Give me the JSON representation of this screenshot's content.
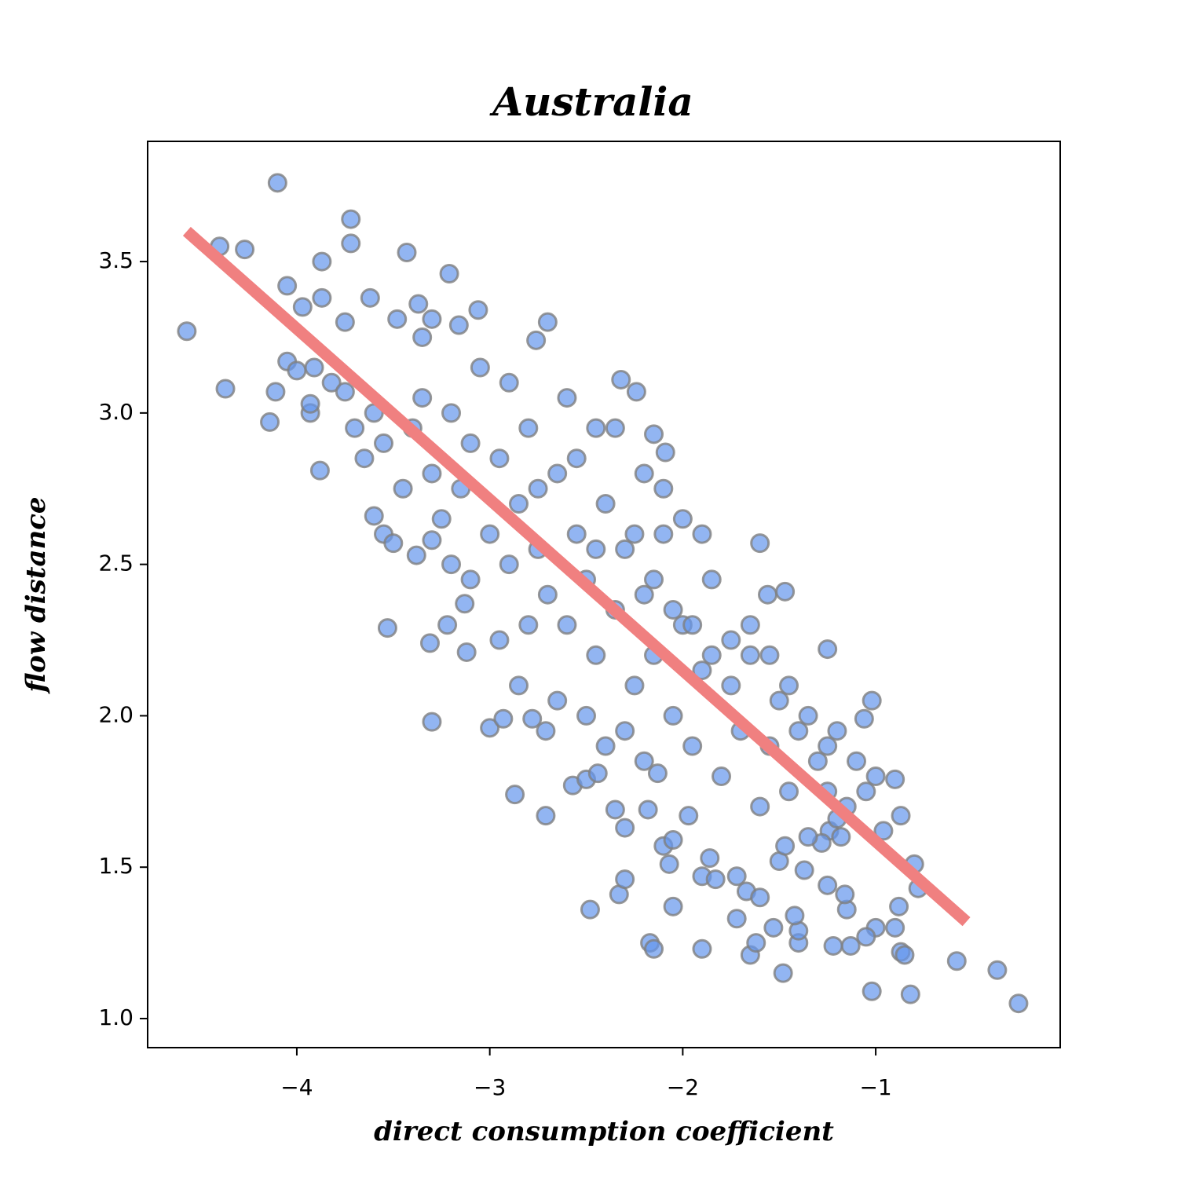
{
  "chart_data": {
    "type": "scatter",
    "title": "Australia",
    "xlabel": "direct consumption coefficient",
    "ylabel": "flow distance",
    "xlim": [
      -4.773,
      -0.044
    ],
    "ylim": [
      0.904,
      3.897
    ],
    "xticks": [
      {
        "value": -4,
        "label": "−4"
      },
      {
        "value": -3,
        "label": "−3"
      },
      {
        "value": -2,
        "label": "−2"
      },
      {
        "value": -1,
        "label": "−1"
      }
    ],
    "yticks": [
      {
        "value": 1,
        "label": "1.0"
      },
      1.5,
      {
        "value": 2,
        "label": "2.0"
      },
      2.5,
      {
        "value": 3,
        "label": "3.0"
      },
      3.5
    ],
    "color": "#6495ed",
    "edgecolor": "#808080",
    "x": [
      -4.1,
      -3.72,
      -4.4,
      -4.27,
      -3.43,
      -3.87,
      -3.72,
      -4.05,
      -3.21,
      -4.57,
      -4.37,
      -4.14,
      -3.88,
      -4.11,
      -3.93,
      -3.93,
      -3.6,
      -3.53,
      -3.31,
      -3.3,
      -3.0,
      -2.87,
      -2.71,
      -2.48,
      -2.33,
      -2.3,
      -2.17,
      -2.15,
      -2.05,
      -1.9,
      -1.65,
      -1.62,
      -1.48,
      -1.02,
      -0.82,
      -0.58,
      -0.37,
      -0.26,
      -0.87,
      -0.85,
      -1.13,
      -1.22,
      -1.4,
      -1.4,
      -1.42,
      -1.53,
      -1.72,
      -0.9,
      -0.88,
      -0.78,
      -0.8,
      -1.0,
      -1.05,
      -1.15,
      -1.16,
      -1.25,
      -1.24,
      -1.6,
      -1.56,
      -1.47,
      -1.25,
      -1.02,
      -1.06,
      -0.9,
      -0.87,
      -0.96,
      -2.32,
      -2.24,
      -2.09,
      -2.15,
      -2.7,
      -2.76,
      -3.06,
      -3.3,
      -3.37,
      -3.48,
      -3.62,
      -3.75,
      -3.87,
      -3.97,
      -4.05,
      -4.0,
      -3.91,
      -3.82,
      -3.75,
      -3.35,
      -3.16,
      -3.55,
      -3.5,
      -3.38,
      -3.3,
      -3.22,
      -3.13,
      -3.12,
      -2.93,
      -2.78,
      -2.71,
      -2.57,
      -2.5,
      -2.44,
      -2.35,
      -2.3,
      -2.18,
      -2.13,
      -2.1,
      -2.07,
      -2.05,
      -1.97,
      -1.9,
      -1.86,
      -1.83,
      -1.72,
      -1.67,
      -1.6,
      -1.5,
      -1.47,
      -1.37,
      -1.28,
      -1.18,
      -1.2,
      -3.4,
      -3.3,
      -3.2,
      -3.15,
      -3.1,
      -3.05,
      -3.0,
      -2.95,
      -2.9,
      -2.85,
      -2.8,
      -2.75,
      -2.7,
      -2.65,
      -2.6,
      -2.55,
      -2.5,
      -2.45,
      -2.4,
      -2.35,
      -2.3,
      -2.25,
      -2.2,
      -2.15,
      -2.1,
      -2.05,
      -2.0,
      -1.95,
      -1.9,
      -1.85,
      -1.8,
      -1.75,
      -1.7,
      -1.65,
      -1.6,
      -1.55,
      -1.5,
      -1.45,
      -1.4,
      -1.35,
      -1.3,
      -1.25,
      -1.2,
      -1.15,
      -1.1,
      -1.05,
      -1.0,
      -3.45,
      -3.25,
      -3.35,
      -3.55,
      -3.6,
      -3.7,
      -3.65,
      -2.9,
      -2.8,
      -2.6,
      -2.45,
      -2.35,
      -2.2,
      -2.1,
      -2.0,
      -1.9,
      -2.95,
      -2.85,
      -2.65,
      -2.5,
      -2.4,
      -2.3,
      -2.2,
      -3.1,
      -3.2,
      -2.75,
      -2.55,
      -2.45,
      -2.25,
      -2.15,
      -2.05,
      -1.95,
      -1.85,
      -1.75,
      -1.65,
      -1.55,
      -1.45,
      -1.35,
      -1.25
    ],
    "y": [
      3.76,
      3.64,
      3.55,
      3.54,
      3.53,
      3.5,
      3.56,
      3.42,
      3.46,
      3.27,
      3.08,
      2.97,
      2.81,
      3.07,
      3.0,
      3.03,
      2.66,
      2.29,
      2.24,
      1.98,
      1.96,
      1.74,
      1.67,
      1.36,
      1.41,
      1.46,
      1.25,
      1.23,
      1.37,
      1.23,
      1.21,
      1.25,
      1.15,
      1.09,
      1.08,
      1.19,
      1.16,
      1.05,
      1.22,
      1.21,
      1.24,
      1.24,
      1.25,
      1.29,
      1.34,
      1.3,
      1.33,
      1.3,
      1.37,
      1.43,
      1.51,
      1.3,
      1.27,
      1.36,
      1.41,
      1.44,
      1.62,
      2.57,
      2.4,
      2.41,
      2.22,
      2.05,
      1.99,
      1.79,
      1.67,
      1.62,
      3.11,
      3.07,
      2.87,
      2.93,
      3.3,
      3.24,
      3.34,
      3.31,
      3.36,
      3.31,
      3.38,
      3.3,
      3.38,
      3.35,
      3.17,
      3.14,
      3.15,
      3.1,
      3.07,
      3.25,
      3.29,
      2.6,
      2.57,
      2.53,
      2.58,
      2.3,
      2.37,
      2.21,
      1.99,
      1.99,
      1.95,
      1.77,
      1.79,
      1.81,
      1.69,
      1.63,
      1.69,
      1.81,
      1.57,
      1.51,
      1.59,
      1.67,
      1.47,
      1.53,
      1.46,
      1.47,
      1.42,
      1.4,
      1.52,
      1.57,
      1.49,
      1.58,
      1.6,
      1.66,
      2.95,
      2.8,
      3.0,
      2.75,
      2.9,
      3.15,
      2.6,
      2.85,
      2.5,
      2.7,
      2.95,
      2.55,
      2.4,
      2.8,
      2.3,
      2.6,
      2.45,
      2.2,
      2.7,
      2.35,
      2.55,
      2.1,
      2.4,
      2.2,
      2.6,
      2.0,
      2.3,
      1.9,
      2.15,
      2.45,
      1.8,
      2.1,
      1.95,
      2.2,
      1.7,
      1.9,
      2.05,
      1.75,
      1.95,
      1.6,
      1.85,
      1.75,
      1.95,
      1.7,
      1.85,
      1.75,
      1.8,
      2.75,
      2.65,
      3.05,
      2.9,
      3.0,
      2.95,
      2.85,
      3.1,
      2.3,
      3.05,
      2.95,
      2.95,
      2.8,
      2.75,
      2.65,
      2.6,
      2.25,
      2.1,
      2.05,
      2.0,
      1.9,
      1.95,
      1.85,
      2.45,
      2.5,
      2.75,
      2.85,
      2.55,
      2.6,
      2.45,
      2.35,
      2.3,
      2.2,
      2.25,
      2.3,
      2.2,
      2.1,
      2.0,
      1.9
    ],
    "fit_line": {
      "color": "#f08080",
      "x": [
        -4.57,
        -0.53
      ],
      "y": [
        3.6,
        1.32
      ]
    }
  }
}
